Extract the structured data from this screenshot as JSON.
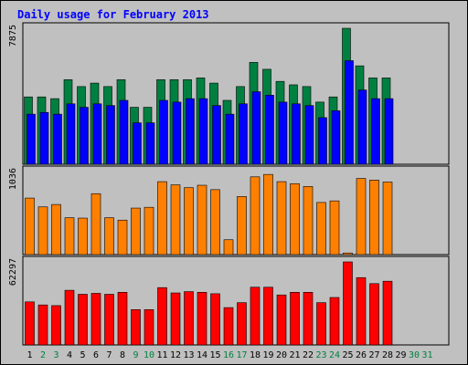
{
  "title": "Daily usage for February 2013",
  "chart_data": [
    {
      "type": "bar",
      "panel": "top",
      "ymax_label": "7875",
      "categories": [
        "1",
        "2",
        "3",
        "4",
        "5",
        "6",
        "7",
        "8",
        "9",
        "10",
        "11",
        "12",
        "13",
        "14",
        "15",
        "16",
        "17",
        "18",
        "19",
        "20",
        "21",
        "22",
        "23",
        "24",
        "25",
        "26",
        "27",
        "28",
        "29",
        "30",
        "31"
      ],
      "series": [
        {
          "color": "#008040",
          "values": [
            3900,
            3900,
            3800,
            4900,
            4500,
            4700,
            4500,
            4900,
            3300,
            3300,
            4900,
            4900,
            4900,
            5000,
            4700,
            3700,
            4500,
            5900,
            5500,
            4800,
            4600,
            4500,
            3600,
            3900,
            7875,
            5700,
            5000,
            5000,
            null,
            null,
            null
          ]
        },
        {
          "color": "#0000ff",
          "values": [
            2900,
            3000,
            2900,
            3500,
            3300,
            3500,
            3400,
            3700,
            2400,
            2400,
            3700,
            3600,
            3800,
            3800,
            3400,
            2900,
            3500,
            4200,
            4000,
            3600,
            3500,
            3400,
            2700,
            3100,
            6000,
            4300,
            3800,
            3800,
            null,
            null,
            null
          ]
        }
      ],
      "ylim": [
        0,
        7875
      ]
    },
    {
      "type": "bar",
      "panel": "middle",
      "ymax_label": "1036",
      "categories": [
        "1",
        "2",
        "3",
        "4",
        "5",
        "6",
        "7",
        "8",
        "9",
        "10",
        "11",
        "12",
        "13",
        "14",
        "15",
        "16",
        "17",
        "18",
        "19",
        "20",
        "21",
        "22",
        "23",
        "24",
        "25",
        "26",
        "27",
        "28",
        "29",
        "30",
        "31"
      ],
      "series": [
        {
          "color": "#ff8000",
          "values": [
            705,
            595,
            625,
            460,
            455,
            760,
            460,
            430,
            580,
            590,
            910,
            870,
            835,
            865,
            810,
            185,
            725,
            970,
            1000,
            910,
            885,
            850,
            650,
            670,
            20,
            950,
            930,
            905,
            null,
            null,
            null
          ]
        }
      ],
      "ylim": [
        0,
        1036
      ]
    },
    {
      "type": "bar",
      "panel": "bottom",
      "ymax_label": "62297",
      "categories": [
        "1",
        "2",
        "3",
        "4",
        "5",
        "6",
        "7",
        "8",
        "9",
        "10",
        "11",
        "12",
        "13",
        "14",
        "15",
        "16",
        "17",
        "18",
        "19",
        "20",
        "21",
        "22",
        "23",
        "24",
        "25",
        "26",
        "27",
        "28",
        "29",
        "30",
        "31"
      ],
      "series": [
        {
          "color": "#ff0000",
          "values": [
            32300,
            30000,
            29500,
            41000,
            38000,
            38700,
            38000,
            39500,
            26500,
            26500,
            43000,
            39000,
            40000,
            39500,
            38400,
            28000,
            31700,
            43300,
            43300,
            37500,
            39500,
            39500,
            31700,
            35600,
            62297,
            50500,
            46000,
            47800,
            null,
            null,
            null
          ]
        }
      ],
      "ylim": [
        0,
        62297
      ]
    }
  ],
  "x_label_colors": {
    "weekday": "#000000",
    "weekend": "#008040"
  },
  "weekend_days": [
    "2",
    "3",
    "9",
    "10",
    "16",
    "17",
    "23",
    "24",
    "30",
    "31"
  ],
  "border_color": "#000000",
  "background_color": "#c0c0c0"
}
